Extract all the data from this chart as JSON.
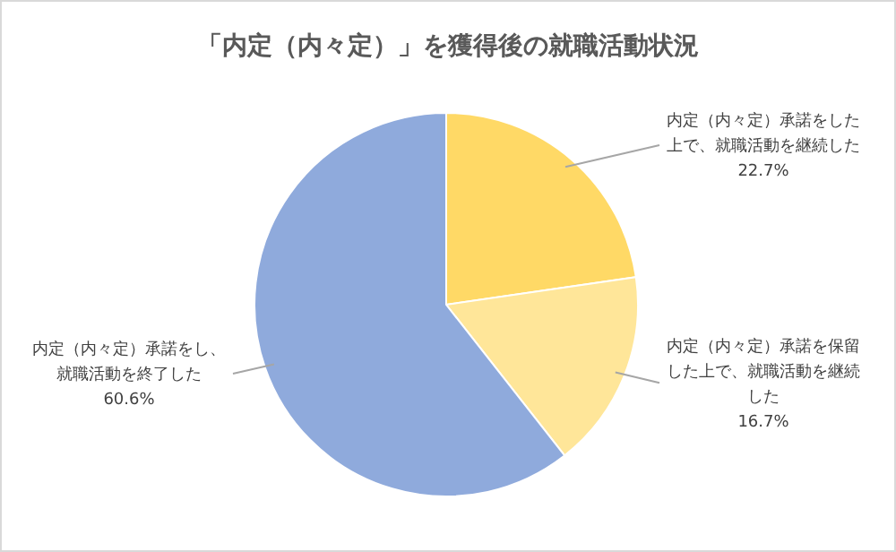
{
  "chart_data": {
    "type": "pie",
    "title": "「内定（内々定）」を獲得後の就職活動状況",
    "categories": [
      "内定（内々定）承諾をした上で、就職活動を継続した",
      "内定（内々定）承諾を保留した上で、就職活動を継続した",
      "内定（内々定）承諾をし、就職活動を終了した"
    ],
    "values": [
      22.7,
      16.7,
      60.6
    ],
    "value_labels": [
      "22.7%",
      "16.7%",
      "60.6%"
    ],
    "colors": [
      "#ffd966",
      "#ffe699",
      "#8faadc"
    ]
  }
}
